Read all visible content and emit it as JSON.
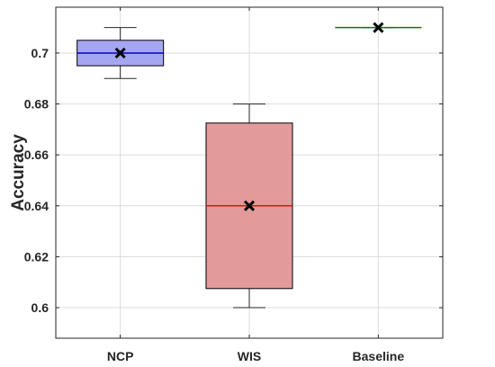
{
  "chart_data": {
    "type": "box",
    "title": "",
    "xlabel": "",
    "ylabel": "Accuracy",
    "ylim": [
      0.588,
      0.718
    ],
    "yticks": [
      0.6,
      0.62,
      0.64,
      0.66,
      0.68,
      0.7
    ],
    "ytick_labels": [
      "0.6",
      "0.62",
      "0.64",
      "0.66",
      "0.68",
      "0.7"
    ],
    "grid": true,
    "categories": [
      "NCP",
      "WIS",
      "Baseline"
    ],
    "boxes": [
      {
        "name": "NCP",
        "whisker_low": 0.69,
        "q1": 0.695,
        "median": 0.7,
        "q3": 0.705,
        "whisker_high": 0.71,
        "mean": 0.7,
        "fill_color": "#a6a6f0",
        "edge_color": "#000000",
        "median_color": "#0000cc"
      },
      {
        "name": "WIS",
        "whisker_low": 0.6,
        "q1": 0.6075,
        "median": 0.64,
        "q3": 0.6725,
        "whisker_high": 0.68,
        "mean": 0.64,
        "fill_color": "#e39a9a",
        "edge_color": "#000000",
        "median_color": "#e01010"
      },
      {
        "name": "Baseline",
        "whisker_low": 0.71,
        "q1": 0.71,
        "median": 0.71,
        "q3": 0.71,
        "whisker_high": 0.71,
        "mean": 0.71,
        "fill_color": "#9fd19f",
        "edge_color": "#000000",
        "median_color": "#008000"
      }
    ]
  }
}
